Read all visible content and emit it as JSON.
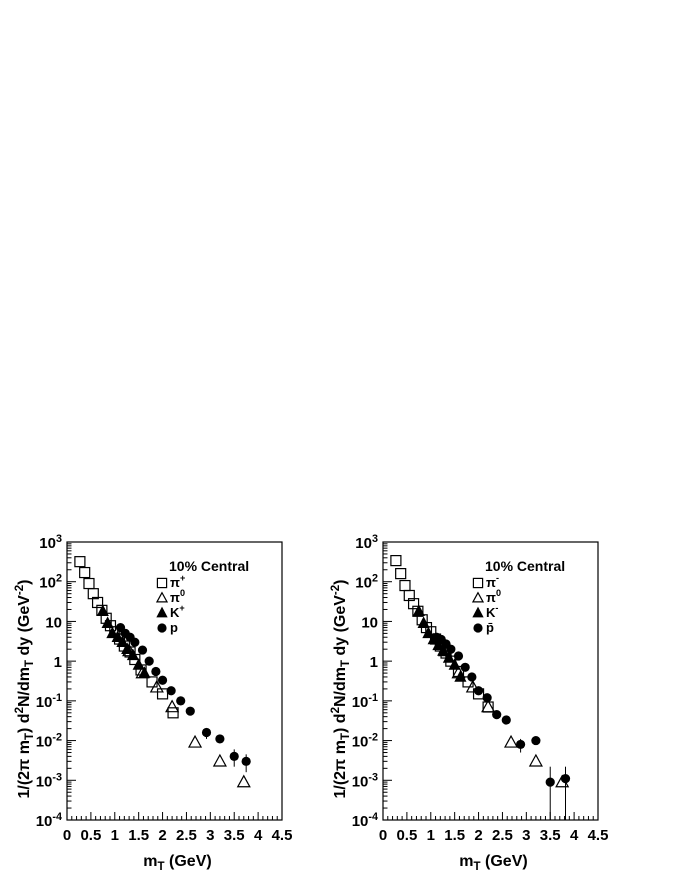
{
  "chart_data": [
    {
      "type": "scatter",
      "title": "",
      "xlabel": "m_T (GeV)",
      "ylabel": "1/(2π m_T) d^2N/dm_T dy (GeV^-2)",
      "xlim": [
        0,
        4.5
      ],
      "ylim": [
        0.0001,
        1000
      ],
      "yscale": "log",
      "x_ticks": [
        "0",
        "0.5",
        "1",
        "1.5",
        "2",
        "2.5",
        "3",
        "3.5",
        "4",
        "4.5"
      ],
      "y_ticks": [
        "10^-4",
        "10^-3",
        "10^-2",
        "10^-1",
        "1",
        "10",
        "10^2",
        "10^3"
      ],
      "legend": {
        "title": "10% Central",
        "placement": "top-right"
      },
      "series": [
        {
          "name": "π+",
          "marker": "open-square",
          "points": [
            [
              0.27,
              320
            ],
            [
              0.37,
              170
            ],
            [
              0.46,
              90
            ],
            [
              0.55,
              50
            ],
            [
              0.64,
              30
            ],
            [
              0.73,
              19
            ],
            [
              0.82,
              12
            ],
            [
              0.91,
              7.8
            ],
            [
              1.0,
              5.5
            ],
            [
              1.1,
              3.6
            ],
            [
              1.2,
              2.4
            ],
            [
              1.32,
              1.7
            ],
            [
              1.42,
              1.1
            ],
            [
              1.55,
              0.6
            ],
            [
              1.78,
              0.3
            ],
            [
              2.0,
              0.15
            ],
            [
              2.22,
              0.05
            ]
          ]
        },
        {
          "name": "π0",
          "marker": "open-triangle",
          "points": [
            [
              1.3,
              1.8
            ],
            [
              1.58,
              0.5
            ],
            [
              1.88,
              0.22
            ],
            [
              2.2,
              0.07
            ],
            [
              2.68,
              0.009
            ],
            [
              3.2,
              0.003
            ],
            [
              3.7,
              0.0009
            ]
          ]
        },
        {
          "name": "K+",
          "marker": "filled-triangle",
          "points": [
            [
              0.75,
              18
            ],
            [
              0.85,
              9
            ],
            [
              0.95,
              5
            ],
            [
              1.06,
              4
            ],
            [
              1.16,
              3
            ],
            [
              1.26,
              2
            ],
            [
              1.38,
              1.4
            ],
            [
              1.5,
              0.8
            ],
            [
              1.62,
              0.5
            ]
          ]
        },
        {
          "name": "p",
          "marker": "filled-circle",
          "points": [
            [
              1.12,
              7
            ],
            [
              1.22,
              5
            ],
            [
              1.32,
              4
            ],
            [
              1.42,
              3
            ],
            [
              1.58,
              1.9
            ],
            [
              1.72,
              1.0
            ],
            [
              1.86,
              0.55
            ],
            [
              2.0,
              0.33
            ],
            [
              2.18,
              0.18
            ],
            [
              2.38,
              0.1
            ],
            [
              2.58,
              0.055
            ],
            [
              2.92,
              0.016
            ],
            [
              3.2,
              0.011
            ],
            [
              3.5,
              0.004
            ],
            [
              3.75,
              0.003
            ]
          ]
        }
      ]
    },
    {
      "type": "scatter",
      "title": "",
      "xlabel": "m_T (GeV)",
      "ylabel": "1/(2π m_T) d^2N/dm_T dy (GeV^-2)",
      "xlim": [
        0,
        4.5
      ],
      "ylim": [
        0.0001,
        1000
      ],
      "yscale": "log",
      "x_ticks": [
        "0",
        "0.5",
        "1",
        "1.5",
        "2",
        "2.5",
        "3",
        "3.5",
        "4",
        "4.5"
      ],
      "y_ticks": [
        "10^-4",
        "10^-3",
        "10^-2",
        "10^-1",
        "1",
        "10",
        "10^2",
        "10^3"
      ],
      "legend": {
        "title": "10% Central",
        "placement": "top-right"
      },
      "series": [
        {
          "name": "π-",
          "marker": "open-square",
          "points": [
            [
              0.27,
              340
            ],
            [
              0.37,
              160
            ],
            [
              0.46,
              80
            ],
            [
              0.55,
              45
            ],
            [
              0.64,
              28
            ],
            [
              0.73,
              18
            ],
            [
              0.82,
              11
            ],
            [
              0.91,
              7
            ],
            [
              1.0,
              5.5
            ],
            [
              1.1,
              3.6
            ],
            [
              1.2,
              2.4
            ],
            [
              1.32,
              1.6
            ],
            [
              1.42,
              1.0
            ],
            [
              1.58,
              0.55
            ],
            [
              1.78,
              0.3
            ],
            [
              2.0,
              0.15
            ],
            [
              2.2,
              0.07
            ]
          ]
        },
        {
          "name": "π0",
          "marker": "open-triangle",
          "points": [
            [
              1.3,
              1.8
            ],
            [
              1.58,
              0.5
            ],
            [
              1.88,
              0.22
            ],
            [
              2.2,
              0.07
            ],
            [
              2.68,
              0.009
            ],
            [
              3.2,
              0.003
            ],
            [
              3.75,
              0.0009
            ]
          ]
        },
        {
          "name": "K-",
          "marker": "filled-triangle",
          "points": [
            [
              0.75,
              18
            ],
            [
              0.85,
              9
            ],
            [
              0.95,
              5
            ],
            [
              1.06,
              3.5
            ],
            [
              1.16,
              2.5
            ],
            [
              1.26,
              1.8
            ],
            [
              1.38,
              1.2
            ],
            [
              1.5,
              0.8
            ],
            [
              1.62,
              0.4
            ]
          ]
        },
        {
          "name": "p̄",
          "marker": "filled-circle",
          "points": [
            [
              1.12,
              4
            ],
            [
              1.22,
              3.5
            ],
            [
              1.32,
              2.7
            ],
            [
              1.42,
              2
            ],
            [
              1.58,
              1.35
            ],
            [
              1.72,
              0.7
            ],
            [
              1.86,
              0.4
            ],
            [
              2.0,
              0.18
            ],
            [
              2.18,
              0.12
            ],
            [
              2.38,
              0.045
            ],
            [
              2.58,
              0.033
            ],
            [
              2.88,
              0.008
            ],
            [
              3.2,
              0.01
            ],
            [
              3.5,
              0.0009
            ],
            [
              3.82,
              0.0011
            ]
          ]
        }
      ]
    }
  ]
}
